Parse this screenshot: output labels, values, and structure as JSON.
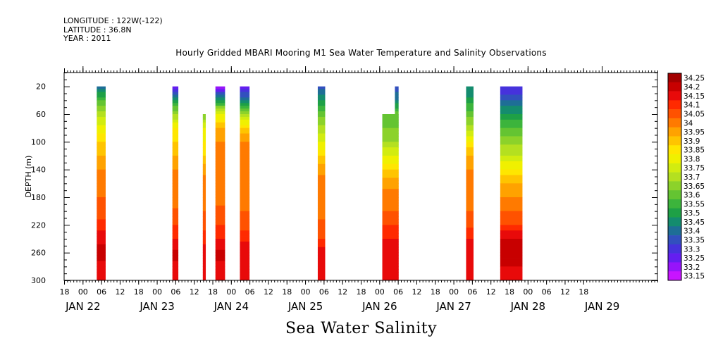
{
  "header": {
    "longitude": "LONGITUDE : 122W(-122)",
    "latitude": "LATITUDE : 36.8N",
    "year": "YEAR : 2011",
    "title": "Hourly Gridded MBARI Mooring M1 Sea Water Temperature and Salinity Observations"
  },
  "footer": {
    "variable": "Sea Water Salinity"
  },
  "chart_data": {
    "type": "heatmap",
    "title": "Hourly Gridded MBARI Mooring M1 Sea Water Temperature and Salinity Observations",
    "xlabel": "",
    "ylabel": "DEPTH (m)",
    "ylim": [
      300,
      0
    ],
    "y_ticks": [
      20,
      60,
      100,
      140,
      180,
      220,
      260,
      300
    ],
    "xlim": [
      -0.25,
      7.75
    ],
    "x_hour_ticks": [
      "18",
      "00",
      "06",
      "12",
      "18",
      "00",
      "06",
      "12",
      "18",
      "00",
      "06",
      "12",
      "18",
      "00",
      "06",
      "12",
      "18",
      "00",
      "06",
      "12",
      "18",
      "00",
      "06",
      "12",
      "18",
      "00",
      "06",
      "12",
      "18"
    ],
    "x_day_labels": [
      "JAN 22",
      "JAN 23",
      "JAN 24",
      "JAN 25",
      "JAN 26",
      "JAN 27",
      "JAN 28",
      "JAN 29"
    ],
    "colorbar": {
      "levels": [
        "34.25",
        "34.2",
        "34.15",
        "34.1",
        "34.05",
        "34",
        "33.95",
        "33.9",
        "33.85",
        "33.8",
        "33.75",
        "33.7",
        "33.65",
        "33.6",
        "33.55",
        "33.5",
        "33.45",
        "33.4",
        "33.35",
        "33.3",
        "33.25",
        "33.2",
        "33.15"
      ],
      "colors": [
        "#a30000",
        "#c80000",
        "#e80a0a",
        "#ff2a00",
        "#ff5200",
        "#ff7a00",
        "#ffa200",
        "#ffc400",
        "#ffe600",
        "#f0f000",
        "#d2ec10",
        "#b4e020",
        "#8cd22a",
        "#64c432",
        "#3cb43c",
        "#1ea046",
        "#148c6e",
        "#1e6e96",
        "#3250be",
        "#4632dc",
        "#641ef0",
        "#9614fa",
        "#c814ff"
      ]
    },
    "segments": [
      {
        "start": 0.19,
        "end": 0.31,
        "top": 20,
        "profile": [
          [
            20,
            33.42
          ],
          [
            40,
            33.6
          ],
          [
            60,
            33.72
          ],
          [
            80,
            33.82
          ],
          [
            100,
            33.9
          ],
          [
            120,
            33.95
          ],
          [
            140,
            34.0
          ],
          [
            160,
            34.02
          ],
          [
            200,
            34.08
          ],
          [
            220,
            34.12
          ],
          [
            240,
            34.18
          ],
          [
            260,
            34.22
          ],
          [
            280,
            34.18
          ],
          [
            300,
            34.15
          ]
        ]
      },
      {
        "start": 1.21,
        "end": 1.29,
        "top": 20,
        "profile": [
          [
            20,
            33.25
          ],
          [
            40,
            33.5
          ],
          [
            60,
            33.7
          ],
          [
            80,
            33.85
          ],
          [
            100,
            33.9
          ],
          [
            120,
            33.95
          ],
          [
            140,
            34.0
          ],
          [
            180,
            34.02
          ],
          [
            210,
            34.08
          ],
          [
            240,
            34.15
          ],
          [
            260,
            34.22
          ],
          [
            280,
            34.18
          ],
          [
            300,
            34.15
          ]
        ]
      },
      {
        "start": 1.62,
        "end": 1.66,
        "top": 60,
        "profile": [
          [
            60,
            33.65
          ],
          [
            80,
            33.8
          ],
          [
            100,
            33.85
          ],
          [
            120,
            33.9
          ],
          [
            140,
            33.98
          ],
          [
            160,
            34.02
          ],
          [
            200,
            34.05
          ],
          [
            230,
            34.1
          ],
          [
            260,
            34.18
          ],
          [
            280,
            34.2
          ],
          [
            300,
            34.18
          ]
        ]
      },
      {
        "start": 1.79,
        "end": 1.92,
        "top": 20,
        "profile": [
          [
            20,
            33.2
          ],
          [
            40,
            33.5
          ],
          [
            60,
            33.8
          ],
          [
            80,
            33.95
          ],
          [
            100,
            34.0
          ],
          [
            140,
            34.02
          ],
          [
            180,
            34.03
          ],
          [
            220,
            34.1
          ],
          [
            240,
            34.15
          ],
          [
            260,
            34.22
          ],
          [
            280,
            34.18
          ],
          [
            300,
            34.15
          ]
        ]
      },
      {
        "start": 2.12,
        "end": 2.25,
        "top": 20,
        "profile": [
          [
            20,
            33.25
          ],
          [
            40,
            33.45
          ],
          [
            60,
            33.7
          ],
          [
            80,
            33.9
          ],
          [
            100,
            34.0
          ],
          [
            140,
            34.02
          ],
          [
            200,
            34.05
          ],
          [
            230,
            34.1
          ],
          [
            260,
            34.2
          ],
          [
            280,
            34.18
          ],
          [
            300,
            34.15
          ]
        ]
      },
      {
        "start": 3.17,
        "end": 3.27,
        "top": 20,
        "profile": [
          [
            20,
            33.38
          ],
          [
            40,
            33.5
          ],
          [
            60,
            33.62
          ],
          [
            80,
            33.72
          ],
          [
            100,
            33.8
          ],
          [
            120,
            33.9
          ],
          [
            140,
            33.98
          ],
          [
            160,
            34.02
          ],
          [
            200,
            34.03
          ],
          [
            240,
            34.1
          ],
          [
            260,
            34.18
          ],
          [
            280,
            34.15
          ],
          [
            300,
            34.15
          ]
        ]
      },
      {
        "start": 4.04,
        "end": 4.26,
        "top": 60,
        "profile": [
          [
            60,
            33.62
          ],
          [
            80,
            33.65
          ],
          [
            100,
            33.7
          ],
          [
            120,
            33.8
          ],
          [
            140,
            33.9
          ],
          [
            160,
            33.98
          ],
          [
            180,
            34.02
          ],
          [
            200,
            34.05
          ],
          [
            220,
            34.1
          ],
          [
            240,
            34.15
          ],
          [
            260,
            34.18
          ],
          [
            300,
            34.18
          ]
        ]
      },
      {
        "start": 4.21,
        "end": 4.26,
        "top": 20,
        "profile": [
          [
            20,
            33.35
          ],
          [
            40,
            33.45
          ],
          [
            60,
            33.62
          ],
          [
            80,
            33.65
          ],
          [
            100,
            33.7
          ],
          [
            120,
            33.8
          ],
          [
            140,
            33.9
          ],
          [
            160,
            33.98
          ],
          [
            180,
            34.02
          ],
          [
            200,
            34.05
          ],
          [
            220,
            34.1
          ],
          [
            240,
            34.15
          ],
          [
            260,
            34.18
          ],
          [
            300,
            34.18
          ]
        ]
      },
      {
        "start": 5.17,
        "end": 5.27,
        "top": 20,
        "profile": [
          [
            20,
            33.45
          ],
          [
            40,
            33.52
          ],
          [
            60,
            33.62
          ],
          [
            80,
            33.72
          ],
          [
            100,
            33.85
          ],
          [
            120,
            33.95
          ],
          [
            140,
            34.0
          ],
          [
            180,
            34.02
          ],
          [
            220,
            34.08
          ],
          [
            240,
            34.15
          ],
          [
            260,
            34.2
          ],
          [
            280,
            34.15
          ],
          [
            300,
            34.15
          ]
        ]
      },
      {
        "start": 5.63,
        "end": 5.93,
        "top": 20,
        "profile": [
          [
            20,
            33.3
          ],
          [
            40,
            33.4
          ],
          [
            60,
            33.5
          ],
          [
            80,
            33.6
          ],
          [
            100,
            33.68
          ],
          [
            120,
            33.75
          ],
          [
            140,
            33.85
          ],
          [
            160,
            33.95
          ],
          [
            180,
            34.0
          ],
          [
            200,
            34.05
          ],
          [
            220,
            34.1
          ],
          [
            240,
            34.2
          ],
          [
            260,
            34.22
          ],
          [
            280,
            34.2
          ],
          [
            300,
            34.18
          ]
        ]
      }
    ]
  }
}
